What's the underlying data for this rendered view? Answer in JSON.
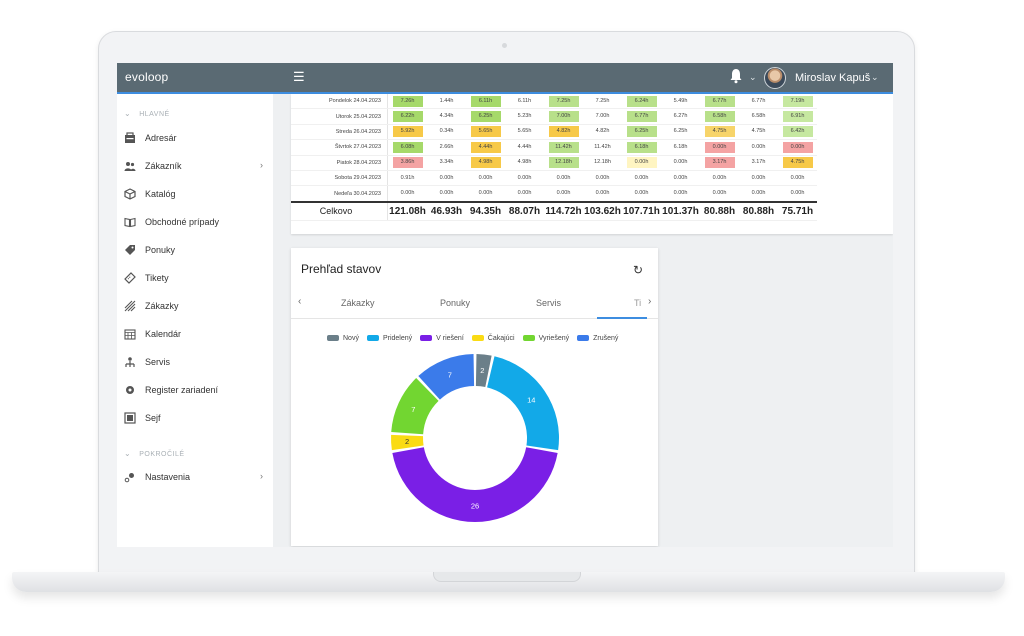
{
  "app": {
    "logo": "evoloop",
    "menu_icon": "hamburger-icon"
  },
  "header": {
    "user_name": "Miroslav Kapuš",
    "bell_icon": "bell-icon"
  },
  "sidebar": {
    "sections": [
      {
        "label": "HLAVNÉ"
      },
      {
        "label": "POKROČILÉ"
      }
    ],
    "items": [
      {
        "label": "Adresár",
        "icon": "address-book-icon"
      },
      {
        "label": "Zákazník",
        "icon": "users-icon",
        "arrow": "›"
      },
      {
        "label": "Katalóg",
        "icon": "box-icon"
      },
      {
        "label": "Obchodné prípady",
        "icon": "book-icon"
      },
      {
        "label": "Ponuky",
        "icon": "tag-icon"
      },
      {
        "label": "Tikety",
        "icon": "ticket-icon"
      },
      {
        "label": "Zákazky",
        "icon": "briefcase-icon"
      },
      {
        "label": "Kalendár",
        "icon": "calendar-icon"
      },
      {
        "label": "Servis",
        "icon": "service-icon"
      },
      {
        "label": "Register zariadení",
        "icon": "gear-icon"
      },
      {
        "label": "Sejf",
        "icon": "safe-icon"
      },
      {
        "label": "Nastavenia",
        "icon": "settings-icon",
        "arrow": "›"
      }
    ]
  },
  "timesheet": {
    "rows": [
      {
        "day": "Pondelok 24.04.2023",
        "values": [
          "7.26h",
          "1.44h",
          "6.11h",
          "6.11h",
          "7.25h",
          "7.25h",
          "6.24h",
          "5.49h",
          "6.77h",
          "6.77h",
          "7.19h"
        ]
      },
      {
        "day": "Utorok 25.04.2023",
        "values": [
          "6.22h",
          "4.34h",
          "6.25h",
          "5.23h",
          "7.00h",
          "7.00h",
          "6.77h",
          "6.27h",
          "6.58h",
          "6.58h",
          "6.91h"
        ]
      },
      {
        "day": "Streda 26.04.2023",
        "values": [
          "5.92h",
          "0.34h",
          "5.65h",
          "5.65h",
          "4.82h",
          "4.82h",
          "6.25h",
          "6.25h",
          "4.75h",
          "4.75h",
          "6.42h"
        ]
      },
      {
        "day": "Štvrtok 27.04.2023",
        "values": [
          "6.08h",
          "2.66h",
          "4.44h",
          "4.44h",
          "11.42h",
          "11.42h",
          "6.18h",
          "6.18h",
          "0.00h",
          "0.00h",
          "0.00h"
        ]
      },
      {
        "day": "Piatok 28.04.2023",
        "values": [
          "3.86h",
          "3.34h",
          "4.98h",
          "4.98h",
          "12.18h",
          "12.18h",
          "0.00h",
          "0.00h",
          "3.17h",
          "3.17h",
          "4.75h"
        ]
      },
      {
        "day": "Sobota 29.04.2023",
        "values": [
          "0.91h",
          "0.00h",
          "0.00h",
          "0.00h",
          "0.00h",
          "0.00h",
          "0.00h",
          "0.00h",
          "0.00h",
          "0.00h",
          "0.00h"
        ]
      },
      {
        "day": "Nedeľa 30.04.2023",
        "values": [
          "0.00h",
          "0.00h",
          "0.00h",
          "0.00h",
          "0.00h",
          "0.00h",
          "0.00h",
          "0.00h",
          "0.00h",
          "0.00h",
          "0.00h"
        ]
      }
    ],
    "row_colors": [
      [
        "#a6d96a",
        "",
        "#a6d96a",
        "",
        "#b8e08a",
        "",
        "#b8e08a",
        "",
        "#b8e08a",
        "",
        "#c6e8a0"
      ],
      [
        "#a6d96a",
        "",
        "#a6d96a",
        "",
        "#b8e08a",
        "",
        "#b8e08a",
        "",
        "#b8e08a",
        "",
        "#c6e8a0"
      ],
      [
        "#f7c948",
        "",
        "#f7c948",
        "",
        "#f7c948",
        "",
        "#b8e08a",
        "",
        "#f7d46a",
        "",
        "#c6e8a0"
      ],
      [
        "#a6d96a",
        "",
        "#f7c948",
        "",
        "#b8e08a",
        "",
        "#b8e08a",
        "",
        "#f4a3a3",
        "",
        "#f4a3a3"
      ],
      [
        "#f4a3a3",
        "",
        "#f7c948",
        "",
        "#b8e08a",
        "",
        "#fff5c2",
        "",
        "#f4a3a3",
        "",
        "#f7c948"
      ],
      [
        "",
        "",
        "",
        "",
        "",
        "",
        "",
        "",
        "",
        "",
        ""
      ],
      [
        "",
        "",
        "",
        "",
        "",
        "",
        "",
        "",
        "",
        "",
        ""
      ]
    ],
    "total": {
      "label": "Celkovo",
      "values": [
        "121.08h",
        "46.93h",
        "94.35h",
        "88.07h",
        "114.72h",
        "103.62h",
        "107.71h",
        "101.37h",
        "80.88h",
        "80.88h",
        "75.71h"
      ]
    }
  },
  "status_card": {
    "title": "Prehľad stavov",
    "refresh_icon": "refresh-icon",
    "tabs": [
      {
        "label": "Zákazky"
      },
      {
        "label": "Ponuky"
      },
      {
        "label": "Servis"
      },
      {
        "label": "Ti"
      }
    ],
    "prev_arrow": "‹",
    "next_arrow": "›"
  },
  "chart_data": {
    "type": "pie",
    "series": [
      {
        "name": "Nový",
        "value": 2,
        "color": "#6b7f89"
      },
      {
        "name": "Pridelený",
        "value": 14,
        "color": "#12a9e8"
      },
      {
        "name": "V riešení",
        "value": 26,
        "color": "#7a1fe6"
      },
      {
        "name": "Čakajúci",
        "value": 2,
        "color": "#fadb14"
      },
      {
        "name": "Vyriešený",
        "value": 7,
        "color": "#72d631"
      },
      {
        "name": "Zrušený",
        "value": 7,
        "color": "#3b7bea"
      }
    ],
    "legend_position": "top"
  }
}
